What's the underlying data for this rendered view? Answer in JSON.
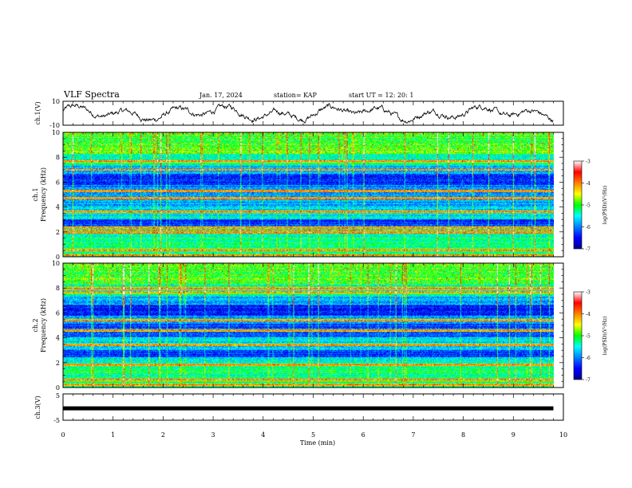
{
  "header": {
    "title": "VLF Spectra",
    "date": "Jan. 17, 2024",
    "station": "station= KAP",
    "start": "start  UT =   12: 20: 1"
  },
  "chart_data": [
    {
      "id": "ch1-waveform",
      "type": "line",
      "ylabel": "ch.1(V)",
      "ylim": [
        -10,
        10
      ],
      "yticks": [
        "10",
        "-10"
      ],
      "xlim": [
        0,
        10
      ],
      "x_end": 9.8
    },
    {
      "id": "ch1-spectrogram",
      "type": "heatmap",
      "ylabel": "ch.1 Frequency (kHz)",
      "ylabel_lines": [
        "ch.1",
        "Frequency (kHz)"
      ],
      "ylim": [
        0,
        10
      ],
      "yticks": [
        "0",
        "2",
        "4",
        "6",
        "8",
        "10"
      ],
      "xlim": [
        0,
        10
      ],
      "x_end": 9.8,
      "strong_bands_khz": [
        0.1,
        0.5,
        1.9,
        2.1,
        2.3,
        3.6,
        4.7,
        5.3,
        7.0,
        7.7
      ],
      "colorbar": {
        "label": "log(PSD)(V²/Hz)",
        "range": [
          -7,
          -3
        ],
        "ticks": [
          "-3",
          "-4",
          "-5",
          "-6",
          "-7"
        ]
      }
    },
    {
      "id": "ch2-spectrogram",
      "type": "heatmap",
      "ylabel": "ch.2 Frequency (kHz)",
      "ylabel_lines": [
        "ch.2",
        "Frequency (kHz)"
      ],
      "ylim": [
        0,
        10
      ],
      "yticks": [
        "0",
        "2",
        "4",
        "6",
        "8",
        "10"
      ],
      "xlim": [
        0,
        10
      ],
      "x_end": 9.8,
      "strong_bands_khz": [
        0.2,
        0.6,
        1.8,
        3.4,
        4.6,
        5.4,
        7.7,
        8.0
      ],
      "colorbar": {
        "label": "log(PSD)(V²/Hz)",
        "range": [
          -7,
          -3
        ],
        "ticks": [
          "-3",
          "-4",
          "-5",
          "-6",
          "-7"
        ]
      }
    },
    {
      "id": "ch3-waveform",
      "type": "line",
      "ylabel": "ch.3(V)",
      "ylim": [
        -5,
        5
      ],
      "yticks": [
        "5",
        "-5"
      ],
      "xlim": [
        0,
        10
      ],
      "x_end": 9.8,
      "level": -0.5,
      "xlabel": "Time  (min)",
      "xticks": [
        "0",
        "1",
        "2",
        "3",
        "4",
        "5",
        "6",
        "7",
        "8",
        "9",
        "10"
      ]
    }
  ]
}
